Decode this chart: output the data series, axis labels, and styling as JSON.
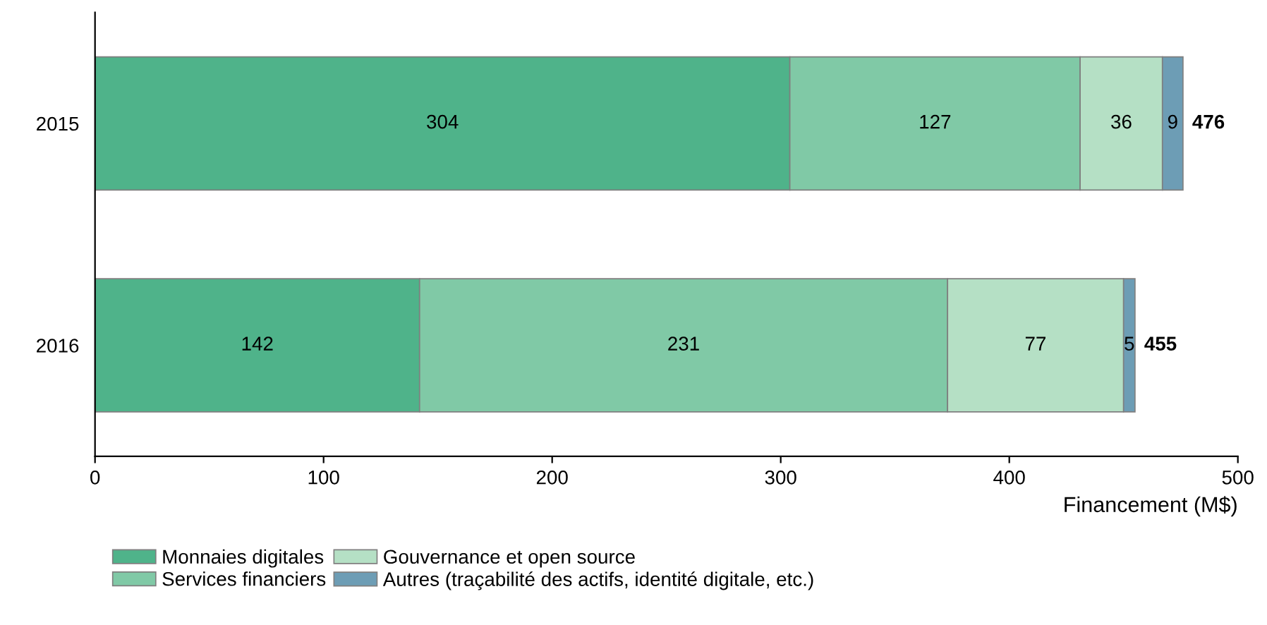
{
  "chart_data": {
    "type": "bar",
    "orientation": "horizontal",
    "stacked": true,
    "categories": [
      "2015",
      "2016"
    ],
    "series": [
      {
        "name": "Monnaies digitales",
        "color": "#4fb38a",
        "values": [
          304,
          142
        ]
      },
      {
        "name": "Services financiers",
        "color": "#80c9a6",
        "values": [
          127,
          231
        ]
      },
      {
        "name": "Gouvernance et open source",
        "color": "#b5e0c5",
        "values": [
          36,
          77
        ]
      },
      {
        "name": "Autres (traçabilité des actifs, identité digitale, etc.)",
        "color": "#6d9db5",
        "values": [
          9,
          5
        ]
      }
    ],
    "xlim": [
      0,
      500
    ],
    "xticks": [
      0,
      100,
      200,
      300,
      400,
      500
    ],
    "xlabel": "Financement (M$)",
    "data_labels": true,
    "totals": [
      "476",
      "455"
    ],
    "grid": false,
    "legend": "bottom"
  }
}
